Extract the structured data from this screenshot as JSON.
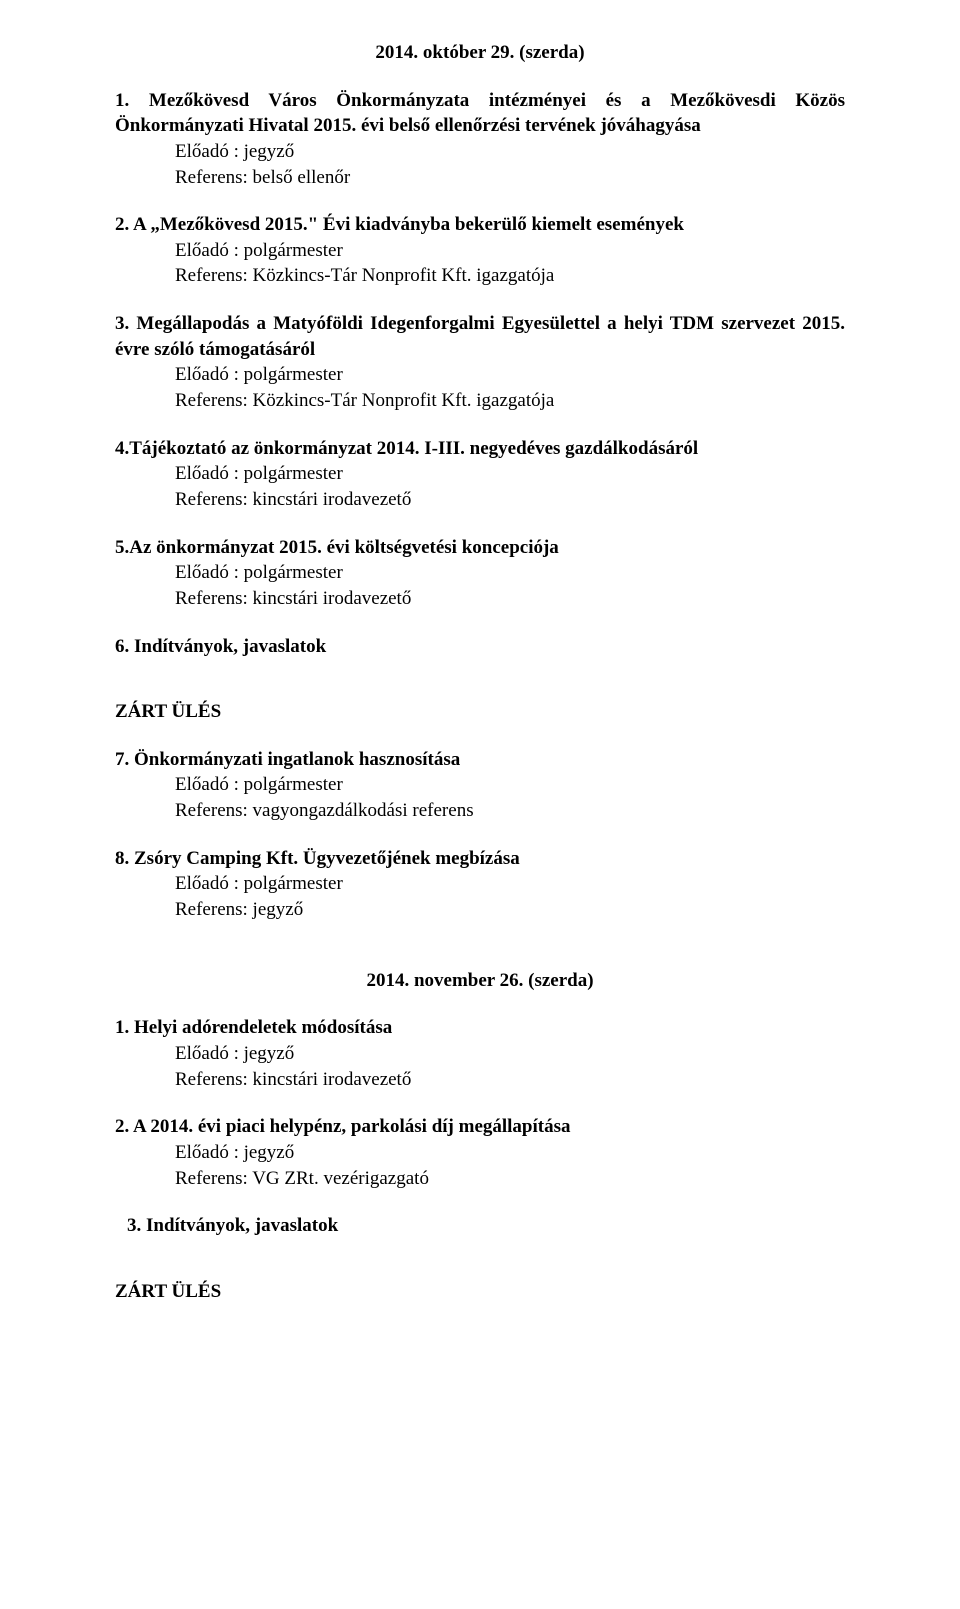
{
  "date1": "2014. október 29. (szerda)",
  "labels": {
    "eloado": "Előadó",
    "referens": "Referens:"
  },
  "items_a": [
    {
      "title": "1. Mezőkövesd Város Önkormányzata intézményei és a Mezőkövesdi Közös Önkormányzati Hivatal 2015. évi belső ellenőrzési tervének jóváhagyása",
      "presenter": "jegyző",
      "referent": "belső ellenőr",
      "justify": true
    },
    {
      "title": "2. A „Mezőkövesd 2015.\" Évi kiadványba bekerülő kiemelt események",
      "presenter": "polgármester",
      "referent": "Közkincs-Tár Nonprofit Kft. igazgatója"
    },
    {
      "title": "3. Megállapodás a Matyóföldi Idegenforgalmi Egyesülettel a helyi TDM szervezet 2015. évre szóló támogatásáról",
      "presenter": "polgármester",
      "referent": "Közkincs-Tár Nonprofit Kft. igazgatója",
      "justify": true
    },
    {
      "title": "4.Tájékoztató az önkormányzat 2014. I-III. negyedéves gazdálkodásáról",
      "presenter": "polgármester",
      "referent": "kincstári irodavezető"
    },
    {
      "title": "5.Az önkormányzat 2015. évi költségvetési koncepciója",
      "presenter": "polgármester",
      "referent": "kincstári irodavezető"
    }
  ],
  "plain_a": "6. Indítványok, javaslatok",
  "closed": "ZÁRT ÜLÉS",
  "items_b": [
    {
      "title": "7. Önkormányzati ingatlanok hasznosítása",
      "presenter": "polgármester",
      "referent": "vagyongazdálkodási referens"
    },
    {
      "title": "8. Zsóry Camping Kft. Ügyvezetőjének megbízása",
      "presenter": "polgármester",
      "referent": "jegyző"
    }
  ],
  "date2": "2014. november 26. (szerda)",
  "items_c": [
    {
      "title": "1. Helyi adórendeletek módosítása",
      "presenter": "jegyző",
      "referent": "kincstári irodavezető"
    },
    {
      "title": "2. A 2014. évi piaci helypénz, parkolási díj megállapítása",
      "presenter": "jegyző",
      "referent": "VG ZRt. vezérigazgató"
    }
  ],
  "plain_c": "3. Indítványok, javaslatok"
}
